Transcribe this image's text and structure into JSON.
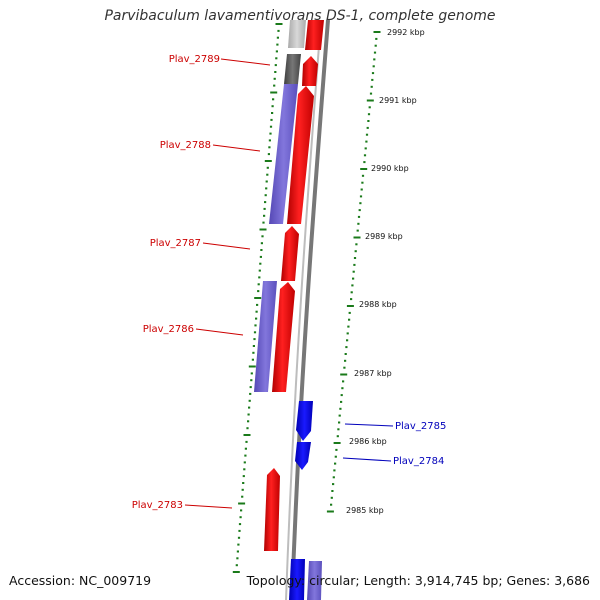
{
  "title": "Parvibaculum lavamentivorans DS-1, complete genome",
  "accession": "Accession: NC_009719",
  "summary": "Topology: circular; Length: 3,914,745 bp; Genes: 3,686",
  "colors": {
    "forward_gene": "#ee0000",
    "reverse_gene": "#0000ee",
    "cds_forward": "#6f63c9",
    "cds_reverse": "#8a80d6",
    "tick": "#1a7a1a",
    "backbone": "#777777",
    "gene_label_red": "#cc0000",
    "gene_label_blue": "#0000bb"
  },
  "scale_labels": [
    "2992 kbp",
    "2991 kbp",
    "2990 kbp",
    "2989 kbp",
    "2988 kbp",
    "2987 kbp",
    "2986 kbp",
    "2985 kbp"
  ],
  "genes": [
    {
      "name": "Plav_2789",
      "strand": "forward"
    },
    {
      "name": "Plav_2788",
      "strand": "forward"
    },
    {
      "name": "Plav_2787",
      "strand": "forward"
    },
    {
      "name": "Plav_2786",
      "strand": "forward"
    },
    {
      "name": "Plav_2785",
      "strand": "reverse"
    },
    {
      "name": "Plav_2784",
      "strand": "reverse"
    },
    {
      "name": "Plav_2783",
      "strand": "forward"
    }
  ]
}
